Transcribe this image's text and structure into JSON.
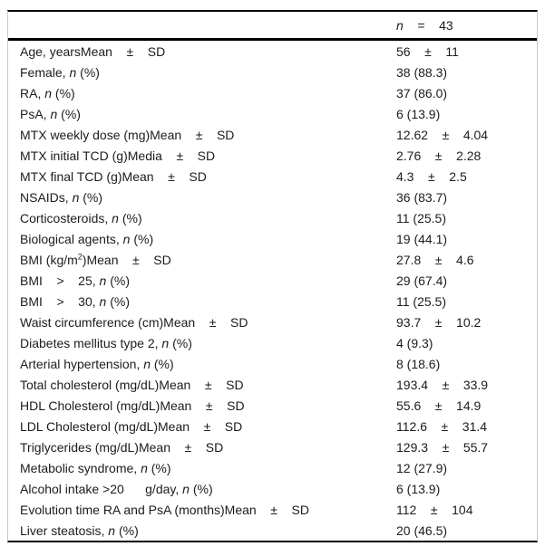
{
  "table": {
    "header": {
      "label": "",
      "value_parts": [
        {
          "t": "n",
          "s": "i"
        },
        {
          "t": "    =    43"
        }
      ]
    },
    "rows": [
      {
        "label_parts": [
          {
            "t": "Age, yearsMean    ±    SD"
          }
        ],
        "value": "56    ±    11"
      },
      {
        "label_parts": [
          {
            "t": "Female, "
          },
          {
            "t": "n",
            "s": "i"
          },
          {
            "t": " (%)"
          }
        ],
        "value": "38 (88.3)"
      },
      {
        "label_parts": [
          {
            "t": "RA, "
          },
          {
            "t": "n",
            "s": "i"
          },
          {
            "t": " (%)"
          }
        ],
        "value": "37 (86.0)"
      },
      {
        "label_parts": [
          {
            "t": "PsA, "
          },
          {
            "t": "n",
            "s": "i"
          },
          {
            "t": " (%)"
          }
        ],
        "value": "6 (13.9)"
      },
      {
        "label_parts": [
          {
            "t": "MTX weekly dose (mg)Mean    ±    SD"
          }
        ],
        "value": "12.62    ±    4.04"
      },
      {
        "label_parts": [
          {
            "t": "MTX initial TCD (g)Media    ±    SD"
          }
        ],
        "value": "2.76    ±    2.28"
      },
      {
        "label_parts": [
          {
            "t": "MTX final TCD (g)Mean    ±    SD"
          }
        ],
        "value": "4.3    ±    2.5"
      },
      {
        "label_parts": [
          {
            "t": "NSAIDs, "
          },
          {
            "t": "n",
            "s": "i"
          },
          {
            "t": " (%)"
          }
        ],
        "value": "36 (83.7)"
      },
      {
        "label_parts": [
          {
            "t": "Corticosteroids, "
          },
          {
            "t": "n",
            "s": "i"
          },
          {
            "t": " (%)"
          }
        ],
        "value": "11 (25.5)"
      },
      {
        "label_parts": [
          {
            "t": "Biological agents, "
          },
          {
            "t": "n",
            "s": "i"
          },
          {
            "t": " (%)"
          }
        ],
        "value": "19 (44.1)"
      },
      {
        "label_parts": [
          {
            "t": "BMI (kg/m"
          },
          {
            "t": "2",
            "s": "sup"
          },
          {
            "t": ")Mean    ±    SD"
          }
        ],
        "value": "27.8    ±    4.6"
      },
      {
        "label_parts": [
          {
            "t": "BMI    >    25, "
          },
          {
            "t": "n",
            "s": "i"
          },
          {
            "t": " (%)"
          }
        ],
        "value": "29 (67.4)"
      },
      {
        "label_parts": [
          {
            "t": "BMI    >    30, "
          },
          {
            "t": "n",
            "s": "i"
          },
          {
            "t": " (%)"
          }
        ],
        "value": "11 (25.5)"
      },
      {
        "label_parts": [
          {
            "t": "Waist circumference (cm)Mean    ±    SD"
          }
        ],
        "value": "93.7    ±    10.2"
      },
      {
        "label_parts": [
          {
            "t": "Diabetes mellitus type 2, "
          },
          {
            "t": "n",
            "s": "i"
          },
          {
            "t": " (%)"
          }
        ],
        "value": "4 (9.3)"
      },
      {
        "label_parts": [
          {
            "t": "Arterial hypertension, "
          },
          {
            "t": "n",
            "s": "i"
          },
          {
            "t": " (%)"
          }
        ],
        "value": "8 (18.6)"
      },
      {
        "label_parts": [
          {
            "t": "Total cholesterol (mg/dL)Mean    ±    SD"
          }
        ],
        "value": "193.4    ±    33.9"
      },
      {
        "label_parts": [
          {
            "t": "HDL Cholesterol (mg/dL)Mean    ±    SD"
          }
        ],
        "value": "55.6    ±    14.9"
      },
      {
        "label_parts": [
          {
            "t": "LDL Cholesterol (mg/dL)Mean    ±    SD"
          }
        ],
        "value": "112.6    ±    31.4"
      },
      {
        "label_parts": [
          {
            "t": "Triglycerides (mg/dL)Mean    ±    SD"
          }
        ],
        "value": "129.3    ±    55.7"
      },
      {
        "label_parts": [
          {
            "t": "Metabolic syndrome, "
          },
          {
            "t": "n",
            "s": "i"
          },
          {
            "t": " (%)"
          }
        ],
        "value": "12 (27.9)"
      },
      {
        "label_parts": [
          {
            "t": "Alcohol intake >20      g/day, "
          },
          {
            "t": "n",
            "s": "i"
          },
          {
            "t": " (%)"
          }
        ],
        "value": "6 (13.9)"
      },
      {
        "label_parts": [
          {
            "t": "Evolution time RA and PsA (months)Mean    ±    SD"
          }
        ],
        "value": "112    ±    104"
      },
      {
        "label_parts": [
          {
            "t": "Liver steatosis, "
          },
          {
            "t": "n",
            "s": "i"
          },
          {
            "t": " (%)"
          }
        ],
        "value": "20 (46.5)"
      }
    ],
    "colors": {
      "rule": "#000000",
      "side_border": "#c9c9c9",
      "text": "#1c1c1c",
      "background": "#ffffff"
    }
  }
}
